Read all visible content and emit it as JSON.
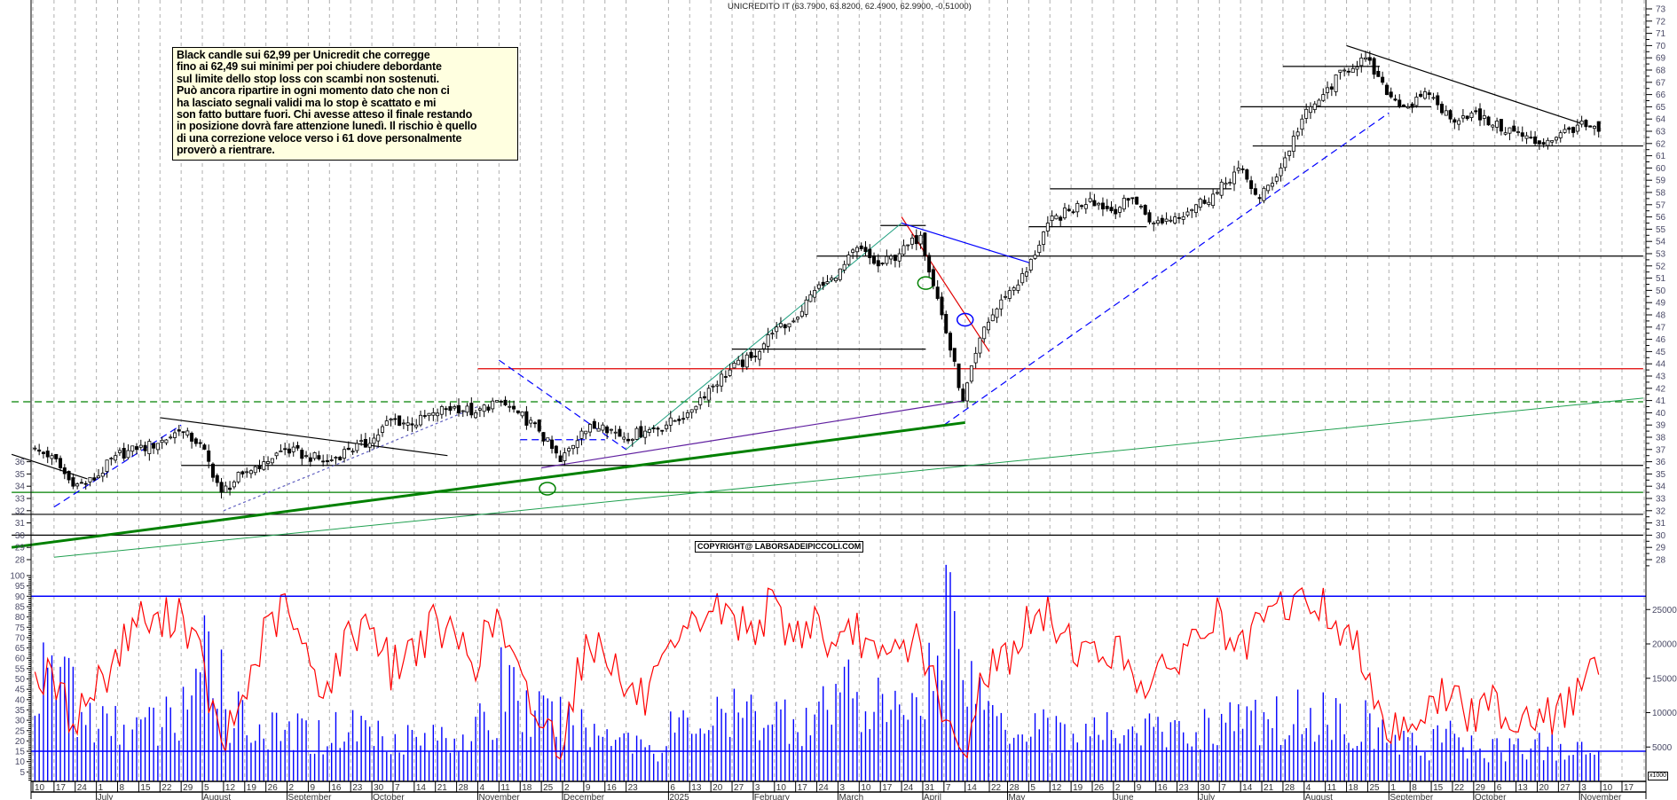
{
  "title": "UNICREDITO IT (63.7900, 63.8200, 62.4900, 62.9900, -0.51000)",
  "note_lines": [
    "Black candle sui 62,99 per Unicredit che corregge",
    "fino ai 62,49 sui minimi per poi chiudere debordante",
    "sul limite dello stop loss  con scambi non sostenuti.",
    "Può ancora ripartire in ogni momento dato che non ci",
    "ha lasciato segnali validi ma lo stop è scattato e mi",
    "son fatto buttare fuori. Chi avesse atteso il finale restando",
    "in posizione dovrà fare attenzione lunedì. Il rischio è quello",
    "di una correzione veloce verso i 61 dove personalmente",
    "proverò a rientrare."
  ],
  "copyright": "COPYRIGHT@ LABORSADEIPICCOLI.COM",
  "volume_unit": "x1000",
  "colors": {
    "candle": "#000000",
    "oscillator": "#ff0000",
    "volume": "#0000ff",
    "grid": "#b0b0b0"
  },
  "chart_data": [
    {
      "type": "candlestick",
      "title": "UNICREDITO IT (63.7900, 63.8200, 62.4900, 62.9900, -0.51000)",
      "last_bar": {
        "open": 63.79,
        "high": 63.82,
        "low": 62.49,
        "close": 62.99,
        "change": -0.51
      },
      "ylim": [
        28,
        73
      ],
      "y_ticks": [
        28,
        29,
        30,
        31,
        32,
        33,
        34,
        35,
        36,
        37,
        38,
        39,
        40,
        41,
        42,
        43,
        44,
        45,
        46,
        47,
        48,
        49,
        50,
        51,
        52,
        53,
        54,
        55,
        56,
        57,
        58,
        59,
        60,
        61,
        62,
        63,
        64,
        65,
        66,
        67,
        68,
        69,
        70,
        71,
        72,
        73
      ],
      "left_y_ticks": [
        28,
        29,
        30,
        31,
        32,
        33,
        34,
        35,
        36
      ],
      "weekly_close_start": "2024-06-10",
      "weekly_close": [
        36.5,
        34,
        34.5,
        36.5,
        37,
        37.5,
        38.5,
        37.5,
        33.5,
        35,
        36,
        37,
        36.5,
        36,
        37,
        37.5,
        39.5,
        39,
        40,
        40.5,
        40,
        41,
        40,
        38.5,
        36,
        38.5,
        39,
        38,
        38.5,
        39,
        40,
        42,
        43.5,
        44.5,
        46.5,
        47.5,
        50,
        51,
        53.5,
        52,
        53,
        54.5,
        48,
        41,
        47,
        49.5,
        51.5,
        55.5,
        56.5,
        57.5,
        56.5,
        57.5,
        55.5,
        56,
        57,
        58,
        60,
        57.5,
        60,
        64,
        66,
        68,
        69,
        66,
        65,
        66,
        64,
        64.5,
        63.5,
        63,
        62,
        62.5,
        63.5,
        63
      ],
      "lines": [
        {
          "from": [
            "2024-06-03",
            31.7
          ],
          "to": [
            "2025-11-24",
            31.7
          ],
          "color": "#000000",
          "style": "solid"
        },
        {
          "from": [
            "2024-06-03",
            30.0
          ],
          "to": [
            "2025-11-24",
            30.0
          ],
          "color": "#000000",
          "style": "solid"
        },
        {
          "from": [
            "2024-06-03",
            33.5
          ],
          "to": [
            "2025-11-24",
            33.5
          ],
          "color": "#008000",
          "style": "solid"
        },
        {
          "from": [
            "2024-06-03",
            40.9
          ],
          "to": [
            "2025-11-24",
            40.9
          ],
          "color": "#008000",
          "style": "dashed"
        },
        {
          "from": [
            "2024-07-29",
            35.7
          ],
          "to": [
            "2025-11-24",
            35.7
          ],
          "color": "#000000",
          "style": "solid"
        },
        {
          "from": [
            "2024-11-04",
            43.6
          ],
          "to": [
            "2025-11-24",
            43.6
          ],
          "color": "#e00000",
          "style": "solid"
        },
        {
          "from": [
            "2025-02-24",
            52.8
          ],
          "to": [
            "2025-11-24",
            52.8
          ],
          "color": "#000000",
          "style": "solid"
        },
        {
          "from": [
            "2025-07-18",
            61.8
          ],
          "to": [
            "2025-11-24",
            61.8
          ],
          "color": "#000000",
          "style": "solid"
        },
        {
          "from": [
            "2025-01-27",
            45.2
          ],
          "to": [
            "2025-04-01",
            45.2
          ],
          "color": "#000000",
          "style": "solid"
        },
        {
          "from": [
            "2025-03-17",
            55.3
          ],
          "to": [
            "2025-04-01",
            55.3
          ],
          "color": "#000000",
          "style": "solid"
        },
        {
          "from": [
            "2025-05-05",
            55.2
          ],
          "to": [
            "2025-06-13",
            55.2
          ],
          "color": "#000000",
          "style": "solid"
        },
        {
          "from": [
            "2025-05-12",
            58.3
          ],
          "to": [
            "2025-07-11",
            58.3
          ],
          "color": "#000000",
          "style": "solid"
        },
        {
          "from": [
            "2025-07-14",
            65.0
          ],
          "to": [
            "2025-09-15",
            65.0
          ],
          "color": "#000000",
          "style": "solid"
        },
        {
          "from": [
            "2025-07-28",
            68.3
          ],
          "to": [
            "2025-08-29",
            68.3
          ],
          "color": "#000000",
          "style": "solid"
        },
        {
          "from": [
            "2025-08-18",
            70.0
          ],
          "to": [
            "2025-11-04",
            63.6
          ],
          "color": "#000000",
          "style": "solid"
        },
        {
          "from": [
            "2024-06-03",
            36.6
          ],
          "to": [
            "2024-06-28",
            34.6
          ],
          "color": "#000000",
          "style": "solid"
        },
        {
          "from": [
            "2024-07-22",
            39.6
          ],
          "to": [
            "2024-10-25",
            36.5
          ],
          "color": "#000000",
          "style": "solid"
        },
        {
          "from": [
            "2024-06-17",
            32.3
          ],
          "to": [
            "2024-07-29",
            39.0
          ],
          "color": "#0000ff",
          "style": "dashed"
        },
        {
          "from": [
            "2024-08-12",
            32.0
          ],
          "to": [
            "2024-11-04",
            40.5
          ],
          "color": "#6060c0",
          "style": "dotted"
        },
        {
          "from": [
            "2024-11-11",
            44.3
          ],
          "to": [
            "2024-12-23",
            37.0
          ],
          "color": "#0000ff",
          "style": "dashed"
        },
        {
          "from": [
            "2024-11-18",
            37.8
          ],
          "to": [
            "2024-12-16",
            37.8
          ],
          "color": "#0000ff",
          "style": "dashed"
        },
        {
          "from": [
            "2025-04-07",
            39.0
          ],
          "to": [
            "2025-09-01",
            64.5
          ],
          "color": "#0000ff",
          "style": "dashed"
        },
        {
          "from": [
            "2024-06-03",
            29.0
          ],
          "to": [
            "2025-04-14",
            39.2
          ],
          "color": "#008000",
          "style": "thick"
        },
        {
          "from": [
            "2024-11-25",
            35.5
          ],
          "to": [
            "2025-04-14",
            41.0
          ],
          "color": "#6020a0",
          "style": "solid"
        },
        {
          "from": [
            "2024-06-17",
            28.2
          ],
          "to": [
            "2025-11-24",
            41.2
          ],
          "color": "#20a050",
          "style": "thin"
        },
        {
          "from": [
            "2024-12-23",
            37.0
          ],
          "to": [
            "2025-03-24",
            55.5
          ],
          "color": "#20a080",
          "style": "thin"
        },
        {
          "from": [
            "2025-03-24",
            56.0
          ],
          "to": [
            "2025-04-22",
            45.0
          ],
          "color": "#e00000",
          "style": "solid"
        },
        {
          "from": [
            "2025-03-24",
            55.5
          ],
          "to": [
            "2025-05-06",
            52.2
          ],
          "color": "#0000ff",
          "style": "solid"
        }
      ],
      "ellipses": [
        {
          "center": [
            "2024-11-27",
            33.8
          ],
          "color": "#008000"
        },
        {
          "center": [
            "2025-04-01",
            50.6
          ],
          "color": "#008000"
        },
        {
          "center": [
            "2025-04-14",
            47.6
          ],
          "color": "#0000ff"
        }
      ]
    },
    {
      "type": "line",
      "series_color": "#ff0000",
      "ylim": [
        0,
        100
      ],
      "y_ticks": [
        5,
        10,
        15,
        20,
        25,
        30,
        35,
        40,
        45,
        50,
        55,
        60,
        65,
        70,
        75,
        80,
        85,
        90,
        95,
        100
      ],
      "reference_lines": [
        90,
        15
      ],
      "weekly_values": [
        50,
        30,
        45,
        60,
        80,
        75,
        85,
        60,
        15,
        40,
        70,
        85,
        60,
        45,
        70,
        80,
        55,
        65,
        75,
        70,
        60,
        80,
        50,
        30,
        20,
        60,
        70,
        45,
        40,
        55,
        70,
        85,
        80,
        75,
        85,
        70,
        80,
        60,
        75,
        55,
        65,
        70,
        30,
        12,
        55,
        60,
        75,
        80,
        70,
        60,
        65,
        55,
        45,
        60,
        70,
        80,
        60,
        75,
        85,
        88,
        85,
        70,
        60,
        25,
        30,
        35,
        45,
        30,
        40,
        30,
        35,
        30,
        45,
        55
      ]
    },
    {
      "type": "bar",
      "series_color": "#0000ff",
      "ylabel": "x1000",
      "y_ticks": [
        5000,
        10000,
        15000,
        20000,
        25000
      ],
      "weekly_values": [
        14000,
        16000,
        9000,
        8000,
        7500,
        8000,
        9000,
        12000,
        18000,
        10000,
        8000,
        7000,
        7000,
        6500,
        7500,
        8000,
        7000,
        6500,
        6000,
        6500,
        7000,
        8000,
        15000,
        10000,
        9000,
        8000,
        7000,
        7500,
        6000,
        5000,
        8000,
        8500,
        9000,
        9500,
        10000,
        9500,
        9000,
        10000,
        14000,
        11000,
        10000,
        12000,
        16000,
        26000,
        14000,
        10000,
        8000,
        9000,
        7000,
        6500,
        7000,
        8000,
        7500,
        7000,
        7000,
        8000,
        9000,
        8500,
        9000,
        9500,
        10000,
        9000,
        8500,
        7000,
        6000,
        5000,
        7000,
        5000,
        4500,
        5000,
        5000,
        5000,
        4500,
        4000
      ]
    }
  ],
  "x_axis": {
    "day_ticks": [
      [
        "2024-06-10",
        "10"
      ],
      [
        "2024-06-17",
        "17"
      ],
      [
        "2024-06-24",
        "24"
      ],
      [
        "2024-07-01",
        "1"
      ],
      [
        "2024-07-08",
        "8"
      ],
      [
        "2024-07-15",
        "15"
      ],
      [
        "2024-07-22",
        "22"
      ],
      [
        "2024-07-29",
        "29"
      ],
      [
        "2024-08-05",
        "5"
      ],
      [
        "2024-08-12",
        "12"
      ],
      [
        "2024-08-19",
        "19"
      ],
      [
        "2024-08-26",
        "26"
      ],
      [
        "2024-09-02",
        "2"
      ],
      [
        "2024-09-09",
        "9"
      ],
      [
        "2024-09-16",
        "16"
      ],
      [
        "2024-09-23",
        "23"
      ],
      [
        "2024-09-30",
        "30"
      ],
      [
        "2024-10-07",
        "7"
      ],
      [
        "2024-10-14",
        "14"
      ],
      [
        "2024-10-21",
        "21"
      ],
      [
        "2024-10-28",
        "28"
      ],
      [
        "2024-11-04",
        "4"
      ],
      [
        "2024-11-11",
        "11"
      ],
      [
        "2024-11-18",
        "18"
      ],
      [
        "2024-11-25",
        "25"
      ],
      [
        "2024-12-02",
        "2"
      ],
      [
        "2024-12-09",
        "9"
      ],
      [
        "2024-12-16",
        "16"
      ],
      [
        "2024-12-23",
        "23"
      ],
      [
        "2025-01-06",
        "6"
      ],
      [
        "2025-01-13",
        "13"
      ],
      [
        "2025-01-20",
        "20"
      ],
      [
        "2025-01-27",
        "27"
      ],
      [
        "2025-02-03",
        "3"
      ],
      [
        "2025-02-10",
        "10"
      ],
      [
        "2025-02-17",
        "17"
      ],
      [
        "2025-02-24",
        "24"
      ],
      [
        "2025-03-03",
        "3"
      ],
      [
        "2025-03-10",
        "10"
      ],
      [
        "2025-03-17",
        "17"
      ],
      [
        "2025-03-24",
        "24"
      ],
      [
        "2025-03-31",
        "31"
      ],
      [
        "2025-04-07",
        "7"
      ],
      [
        "2025-04-14",
        "14"
      ],
      [
        "2025-04-22",
        "22"
      ],
      [
        "2025-04-28",
        "28"
      ],
      [
        "2025-05-05",
        "5"
      ],
      [
        "2025-05-12",
        "12"
      ],
      [
        "2025-05-19",
        "19"
      ],
      [
        "2025-05-26",
        "26"
      ],
      [
        "2025-06-02",
        "2"
      ],
      [
        "2025-06-09",
        "9"
      ],
      [
        "2025-06-16",
        "16"
      ],
      [
        "2025-06-23",
        "23"
      ],
      [
        "2025-06-30",
        "30"
      ],
      [
        "2025-07-07",
        "7"
      ],
      [
        "2025-07-14",
        "14"
      ],
      [
        "2025-07-21",
        "21"
      ],
      [
        "2025-07-28",
        "28"
      ],
      [
        "2025-08-04",
        "4"
      ],
      [
        "2025-08-11",
        "11"
      ],
      [
        "2025-08-18",
        "18"
      ],
      [
        "2025-08-25",
        "25"
      ],
      [
        "2025-09-01",
        "1"
      ],
      [
        "2025-09-08",
        "8"
      ],
      [
        "2025-09-15",
        "15"
      ],
      [
        "2025-09-22",
        "22"
      ],
      [
        "2025-09-29",
        "29"
      ],
      [
        "2025-10-06",
        "6"
      ],
      [
        "2025-10-13",
        "13"
      ],
      [
        "2025-10-20",
        "20"
      ],
      [
        "2025-10-27",
        "27"
      ],
      [
        "2025-11-03",
        "3"
      ],
      [
        "2025-11-10",
        "10"
      ],
      [
        "2025-11-17",
        "17"
      ]
    ],
    "months": [
      [
        "2024-07-01",
        "July"
      ],
      [
        "2024-08-05",
        "August"
      ],
      [
        "2024-09-02",
        "September"
      ],
      [
        "2024-09-30",
        "October"
      ],
      [
        "2024-11-04",
        "November"
      ],
      [
        "2024-12-02",
        "December"
      ],
      [
        "2025-01-06",
        "2025"
      ],
      [
        "2025-02-03",
        "February"
      ],
      [
        "2025-03-03",
        "March"
      ],
      [
        "2025-03-31",
        "April"
      ],
      [
        "2025-04-28",
        "May"
      ],
      [
        "2025-06-02",
        "June"
      ],
      [
        "2025-06-30",
        "July"
      ],
      [
        "2025-08-04",
        "August"
      ],
      [
        "2025-09-01",
        "September"
      ],
      [
        "2025-09-29",
        "October"
      ],
      [
        "2025-11-03",
        "November"
      ]
    ]
  }
}
